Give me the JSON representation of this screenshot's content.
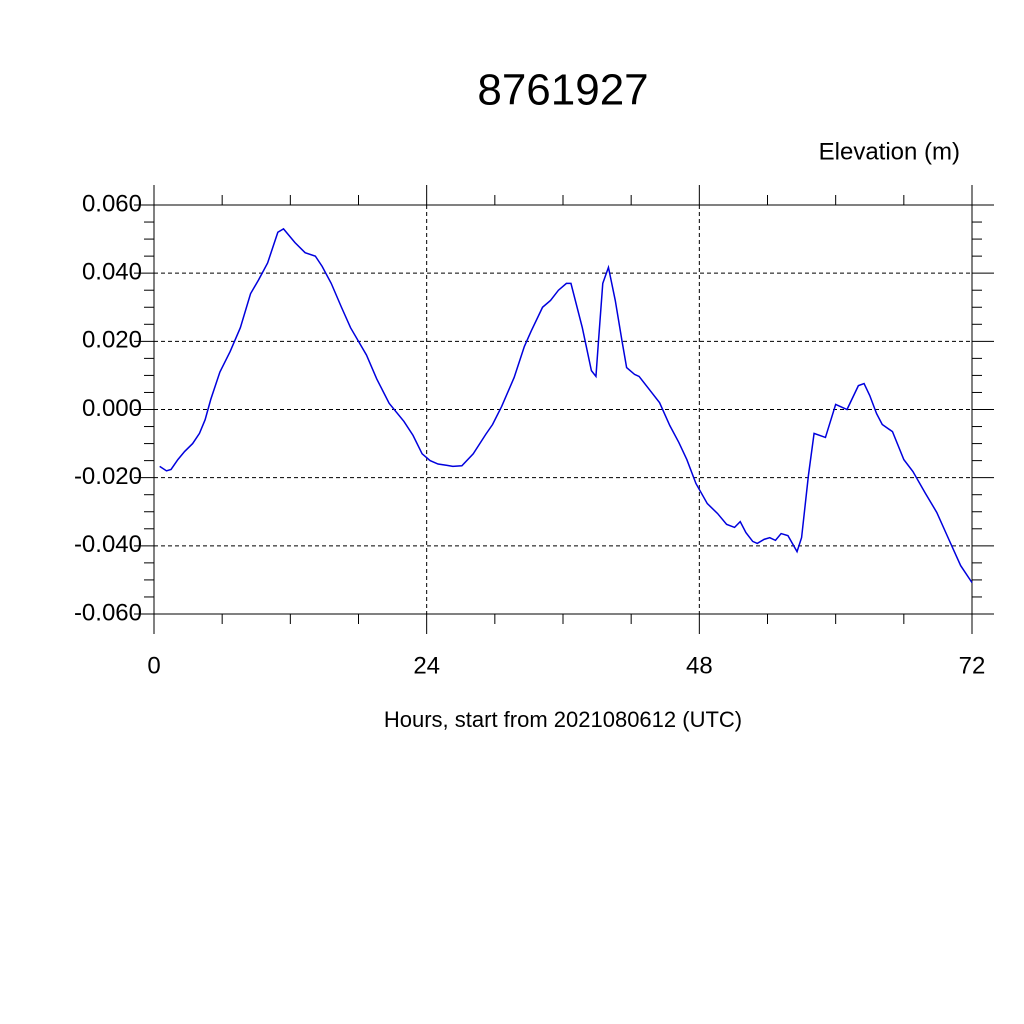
{
  "chart_data": {
    "type": "line",
    "title": "8761927",
    "subtitle": "Elevation (m)",
    "x_label": "Hours, start from 2021080612 (UTC)",
    "xlim": [
      0,
      72
    ],
    "ylim": [
      -0.06,
      0.06
    ],
    "xticks": [
      0,
      24,
      48,
      72
    ],
    "yticks": [
      {
        "value": -0.06,
        "label": "-0.060"
      },
      {
        "value": -0.04,
        "label": "-0.040"
      },
      {
        "value": -0.02,
        "label": "-0.020"
      },
      {
        "value": 0,
        "label": "0.000"
      },
      {
        "value": 0.02,
        "label": "0.020"
      },
      {
        "value": 0.04,
        "label": "0.040"
      },
      {
        "value": 0.06,
        "label": "0.060"
      }
    ],
    "xminorticks": [
      6,
      12,
      18,
      30,
      36,
      42,
      54,
      60,
      66
    ],
    "yminorticks": [
      -0.055,
      -0.05,
      -0.045,
      -0.035,
      -0.03,
      -0.025,
      -0.015,
      -0.01,
      -0.005,
      0.005,
      0.01,
      0.015,
      0.025,
      0.03,
      0.035,
      0.045,
      0.05,
      0.055
    ],
    "grid": true,
    "series": [
      {
        "color": "#0000dd",
        "x": [
          0.5,
          1.1,
          1.5,
          2.1,
          2.7,
          3.4,
          4.0,
          4.5,
          5.0,
          5.8,
          6.7,
          7.6,
          8.5,
          9.2,
          10.0,
          10.9,
          11.4,
          12.4,
          13.3,
          14.2,
          14.8,
          15.6,
          16.5,
          17.3,
          18.7,
          19.6,
          20.7,
          22.0,
          22.8,
          23.6,
          24.3,
          25.0,
          25.8,
          26.3,
          27.1,
          28.1,
          29.2,
          29.8,
          30.6,
          31.7,
          32.6,
          33.2,
          34.2,
          34.9,
          35.6,
          36.3,
          36.7,
          37.7,
          38.5,
          38.9,
          39.1,
          39.5,
          40.0,
          40.6,
          41.2,
          41.6,
          42.3,
          42.7,
          43.8,
          44.5,
          45.4,
          46.2,
          46.9,
          47.7,
          48.7,
          49.6,
          50.4,
          51.1,
          51.6,
          52.1,
          52.7,
          53.1,
          53.7,
          54.2,
          54.7,
          55.2,
          55.8,
          56.6,
          57.0,
          57.6,
          58.1,
          59.1,
          60.0,
          61.0,
          62.0,
          62.5,
          63.0,
          63.6,
          64.1,
          65.0,
          66.0,
          66.8,
          67.9,
          68.9,
          70.0,
          71.0,
          72.0
        ],
        "values": [
          -0.0167,
          -0.018,
          -0.0176,
          -0.0147,
          -0.0123,
          -0.01,
          -0.007,
          -0.003,
          0.003,
          0.011,
          0.017,
          0.024,
          0.034,
          0.038,
          0.043,
          0.052,
          0.053,
          0.049,
          0.046,
          0.045,
          0.042,
          0.037,
          0.03,
          0.024,
          0.016,
          0.009,
          0.0018,
          -0.0035,
          -0.0076,
          -0.013,
          -0.015,
          -0.016,
          -0.0164,
          -0.0167,
          -0.0165,
          -0.013,
          -0.0073,
          -0.0044,
          0.0009,
          0.0094,
          0.0185,
          0.023,
          0.03,
          0.032,
          0.035,
          0.037,
          0.037,
          0.024,
          0.0114,
          0.0097,
          0.019,
          0.037,
          0.0417,
          0.032,
          0.02,
          0.0123,
          0.0103,
          0.0097,
          0.005,
          0.002,
          -0.0047,
          -0.0097,
          -0.0147,
          -0.0217,
          -0.0276,
          -0.0305,
          -0.0337,
          -0.0346,
          -0.0329,
          -0.0361,
          -0.0387,
          -0.0393,
          -0.0381,
          -0.0376,
          -0.0384,
          -0.0364,
          -0.037,
          -0.0417,
          -0.0376,
          -0.0194,
          -0.007,
          -0.0082,
          0.0015,
          0.0,
          0.007,
          0.0076,
          0.0041,
          -0.0012,
          -0.0044,
          -0.0065,
          -0.0147,
          -0.0182,
          -0.0246,
          -0.0302,
          -0.0384,
          -0.0458,
          -0.0508
        ]
      }
    ]
  }
}
